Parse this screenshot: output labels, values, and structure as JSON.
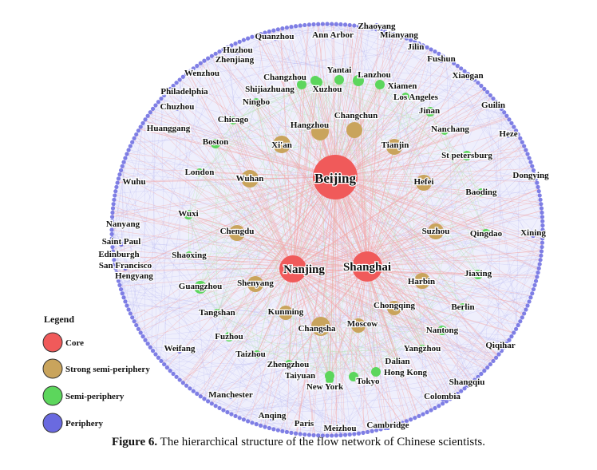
{
  "caption": {
    "label": "Figure 6.",
    "text": "The hierarchical structure of the flow network of Chinese scientists."
  },
  "legend": {
    "title": "Legend",
    "items": [
      {
        "label": "Core",
        "color": "#f05a5a"
      },
      {
        "label": "Strong semi-periphery",
        "color": "#c9a45c"
      },
      {
        "label": "Semi-periphery",
        "color": "#5cd65c"
      },
      {
        "label": "Periphery",
        "color": "#6a6ae0"
      }
    ]
  },
  "colors": {
    "core": "#f05a5a",
    "strong": "#c9a45c",
    "semi": "#5cd65c",
    "periphery": "#6a6ae0",
    "edges_core": "#f4a6a6",
    "edges_blue": "#b9b9f2",
    "edges_green": "#bfe8bf"
  },
  "nodes": {
    "core": [
      "Beijing",
      "Shanghai",
      "Nanjing"
    ],
    "strong": [
      "Hangzhou",
      "Changchun",
      "Xi'an",
      "Tianjin",
      "Wuhan",
      "Hefei",
      "Chengdu",
      "Suzhou",
      "Shenyang",
      "Harbin",
      "Kunming",
      "Chongqing",
      "Changsha",
      "Moscow"
    ],
    "semi": [
      "Yantai",
      "Lanzhou",
      "Shijiazhuang",
      "Xuzhou",
      "Changzhou",
      "Xiamen",
      "Los Angeles",
      "Jinan",
      "Ningbo",
      "Chicago",
      "Nanchang",
      "Boston",
      "St petersburg",
      "London",
      "Baoding",
      "Wuxi",
      "Qingdao",
      "Shaoxing",
      "Jiaxing",
      "Guangzhou",
      "Berlin",
      "Tangshan",
      "Nantong",
      "Fuzhou",
      "Taizhou",
      "Yangzhou",
      "Dalian",
      "Zhengzhou",
      "Hong Kong",
      "Taiyuan",
      "Tokyo",
      "New York"
    ],
    "periphery": [
      "Zhaoyang",
      "Mianyang",
      "Quanzhou",
      "Ann Arbor",
      "Jilin",
      "Huzhou",
      "Zhenjiang",
      "Fushun",
      "Wenzhou",
      "Xiaogan",
      "Philadelphia",
      "Guilin",
      "Chuzhou",
      "Heze",
      "Huanggang",
      "Dongying",
      "Wuhu",
      "Nanyang",
      "Xining",
      "Saint Paul",
      "Edinburgh",
      "San Francisco",
      "Hengyang",
      "Weifang",
      "Qiqihar",
      "Shangqiu",
      "Colombia",
      "Manchester",
      "Anqing",
      "Paris",
      "Meizhou",
      "Cambridge"
    ]
  }
}
